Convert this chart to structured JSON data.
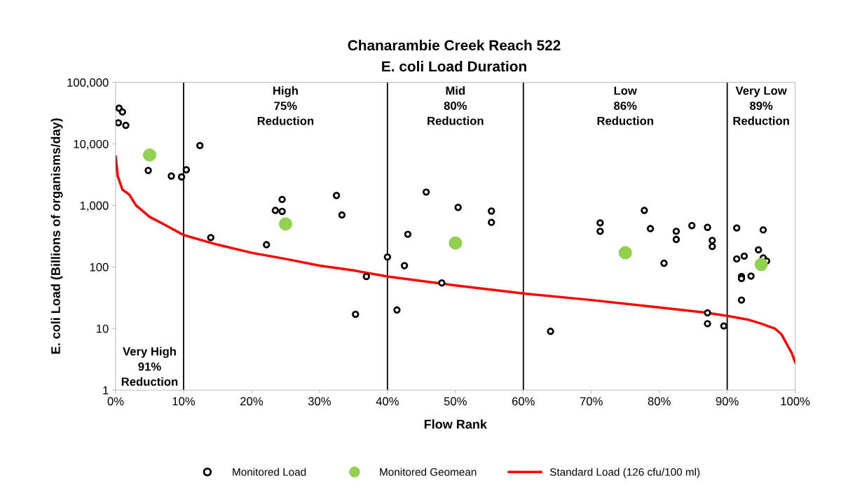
{
  "chart_data": {
    "type": "scatter",
    "title": "Chanarambie Creek Reach 522",
    "subtitle": "E. coli Load Duration",
    "xlabel": "Flow Rank",
    "ylabel": "E. coli Load (Billions of organisms/day)",
    "log": "y",
    "grid": false,
    "legend": "bottom",
    "xlim": [
      0,
      100
    ],
    "ylim": [
      1,
      100000
    ],
    "xticks": [
      {
        "value": 0,
        "label": "0%"
      },
      {
        "value": 10,
        "label": "10%"
      },
      {
        "value": 20,
        "label": "20%"
      },
      {
        "value": 30,
        "label": "30%"
      },
      {
        "value": 40,
        "label": "40%"
      },
      {
        "value": 50,
        "label": "50%"
      },
      {
        "value": 60,
        "label": "60%"
      },
      {
        "value": 70,
        "label": "70%"
      },
      {
        "value": 80,
        "label": "80%"
      },
      {
        "value": 90,
        "label": "90%"
      },
      {
        "value": 100,
        "label": "100%"
      }
    ],
    "yticks": [
      1,
      10,
      100,
      {
        "value": 1000,
        "label": "1,000"
      },
      {
        "value": 10000,
        "label": "10,000"
      },
      {
        "value": 100000,
        "label": "100,000"
      }
    ],
    "series": [
      {
        "name": "Monitored Load",
        "marker": "circle",
        "color": "#000000",
        "x": [
          0.5,
          1,
          0.4,
          1.5,
          4.8,
          8.2,
          9.7,
          10.4,
          12.4,
          14,
          22.2,
          23.5,
          24.5,
          24.5,
          32.5,
          33.3,
          35.3,
          36.9,
          40,
          41.4,
          42.5,
          43,
          45.7,
          48,
          50.4,
          55.3,
          55.3,
          64,
          71.3,
          71.3,
          77.8,
          78.7,
          80.7,
          82.5,
          82.5,
          84.8,
          87.1,
          87.8,
          87.8,
          87.1,
          87.1,
          89.5,
          91.4,
          91.4,
          92.5,
          92.1,
          92.1,
          92.1,
          93.5,
          94.6,
          95.3,
          95.3,
          95.8
        ],
        "values": [
          38000,
          33000,
          22000,
          20000,
          3700,
          3000,
          2900,
          3800,
          9400,
          300,
          230,
          830,
          1250,
          800,
          1450,
          700,
          17,
          70,
          145,
          20,
          105,
          340,
          1650,
          55,
          930,
          810,
          530,
          9,
          520,
          380,
          830,
          420,
          115,
          380,
          280,
          470,
          440,
          270,
          215,
          18,
          12,
          11,
          430,
          135,
          150,
          70,
          65,
          29,
          71,
          190,
          400,
          140,
          125
        ]
      },
      {
        "name": "Monitored Geomean",
        "marker": "circle",
        "color": "#92d050",
        "x": [
          5,
          25,
          50,
          75,
          95
        ],
        "values": [
          6600,
          500,
          245,
          170,
          110
        ]
      },
      {
        "name": "Standard Load (126 cfu/100 ml)",
        "type": "line",
        "marker": "none",
        "line_style": "solid",
        "color": "#ff0000",
        "x": [
          0,
          0.3,
          1,
          2,
          3,
          5,
          7,
          10,
          15,
          20,
          25,
          30,
          35,
          40,
          50,
          60,
          70,
          80,
          87,
          90,
          93,
          95,
          97,
          98,
          99,
          99.5,
          100
        ],
        "values": [
          6200,
          3000,
          1800,
          1500,
          1000,
          650,
          500,
          330,
          230,
          170,
          135,
          105,
          88,
          70,
          50,
          37,
          29,
          22,
          18,
          16,
          14,
          12,
          10,
          8,
          5,
          4,
          2.8
        ]
      }
    ],
    "ref_lines": [
      {
        "axis": "x",
        "value": 10,
        "color": "#000000"
      },
      {
        "axis": "x",
        "value": 40,
        "color": "#000000"
      },
      {
        "axis": "x",
        "value": 60,
        "color": "#000000"
      },
      {
        "axis": "x",
        "value": 90,
        "color": "#000000"
      }
    ],
    "annotations": [
      "Very High\n91%\nReduction",
      "High\n75%\nReduction",
      "Mid\n80%\nReduction",
      "Low\n86%\nReduction",
      "Very Low\n89%\nReduction"
    ]
  }
}
